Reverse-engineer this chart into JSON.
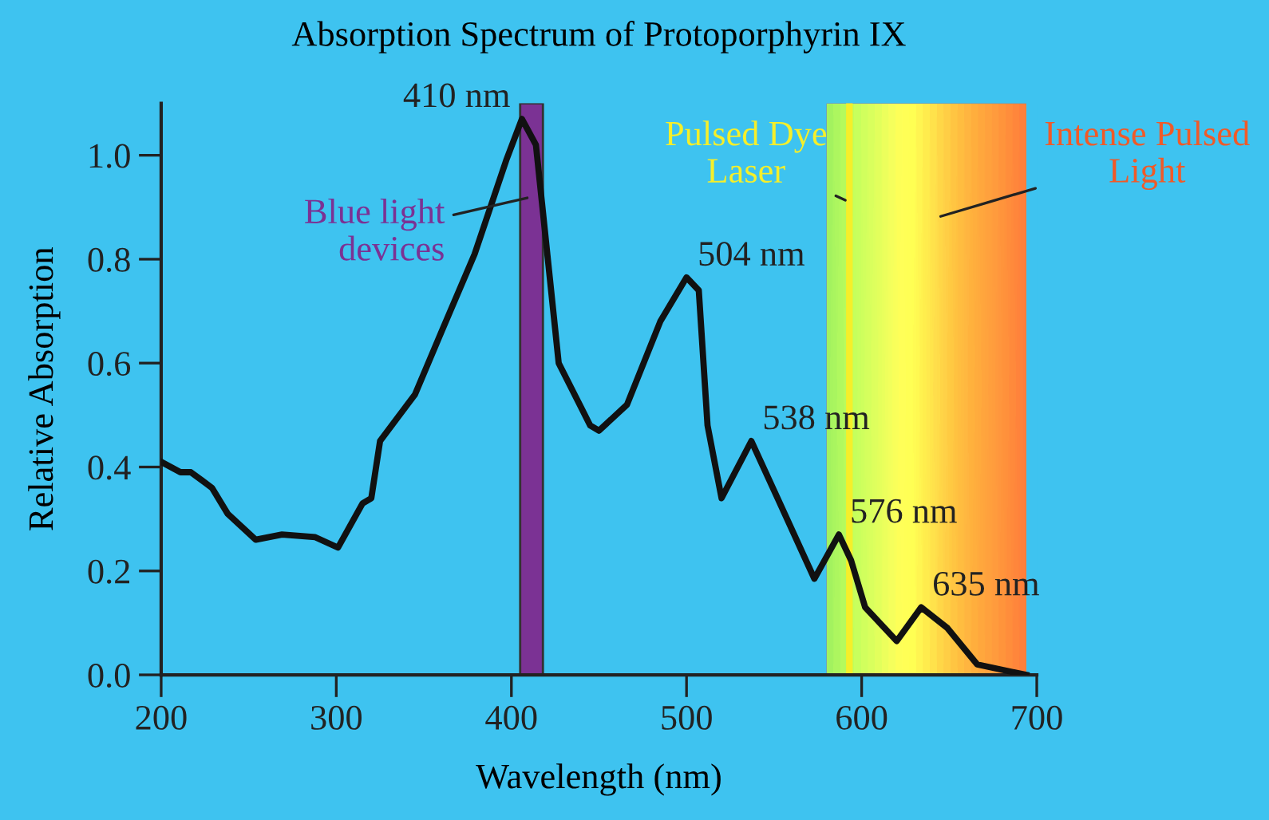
{
  "chart_data": {
    "type": "line",
    "title": "Absorption Spectrum of Protoporphyrin IX",
    "xlabel": "Wavelength (nm)",
    "ylabel": "Relative Absorption",
    "series": [
      {
        "color": "#111111",
        "x": [
          200,
          211,
          217,
          229,
          238,
          254,
          269,
          288,
          301,
          315,
          320,
          325,
          345,
          360,
          379,
          397,
          406,
          414,
          427,
          445,
          450,
          466,
          485,
          500,
          507,
          512,
          520,
          537,
          552,
          573,
          587,
          594,
          602,
          620,
          634,
          649,
          666,
          694
        ],
        "values": [
          0.41,
          0.39,
          0.39,
          0.36,
          0.31,
          0.26,
          0.27,
          0.265,
          0.245,
          0.33,
          0.34,
          0.45,
          0.54,
          0.66,
          0.81,
          0.99,
          1.07,
          1.02,
          0.6,
          0.48,
          0.47,
          0.52,
          0.68,
          0.765,
          0.74,
          0.48,
          0.34,
          0.45,
          0.34,
          0.185,
          0.27,
          0.22,
          0.13,
          0.065,
          0.13,
          0.09,
          0.02,
          0.0
        ]
      }
    ],
    "xlim": [
      200,
      700
    ],
    "ylim": [
      0,
      1.1
    ],
    "xticks": [
      200,
      300,
      400,
      500,
      600,
      700
    ],
    "yticks": [
      {
        "value": 0,
        "label": "0.0"
      },
      {
        "value": 0.2,
        "label": "0.2"
      },
      {
        "value": 0.4,
        "label": "0.4"
      },
      {
        "value": 0.6,
        "label": "0.6"
      },
      {
        "value": 0.8,
        "label": "0.8"
      },
      {
        "value": 1.0,
        "label": "1.0"
      }
    ],
    "grid": false,
    "legend": false,
    "marker": "none",
    "line_style": "solid",
    "bands": [
      {
        "axis": "x",
        "from": 405,
        "to": 418,
        "label": "Blue light devices",
        "color": "#7b3294"
      },
      {
        "axis": "x",
        "from": 580,
        "to": 694,
        "label": "Intense Pulsed Light",
        "color": "#f05a28"
      }
    ],
    "ref_lines": [
      {
        "axis": "x",
        "value": 593,
        "label": "Pulsed Dye Laser",
        "color": "#f5ef2a"
      }
    ],
    "annotations": [
      {
        "text": "410 nm",
        "x": 407,
        "y": 1.07
      },
      {
        "text": "504 nm",
        "x": 500,
        "y": 0.765
      },
      {
        "text": "538 nm",
        "x": 537,
        "y": 0.45
      },
      {
        "text": "576 nm",
        "x": 587,
        "y": 0.27
      },
      {
        "text": "635 nm",
        "x": 634,
        "y": 0.13
      }
    ]
  }
}
